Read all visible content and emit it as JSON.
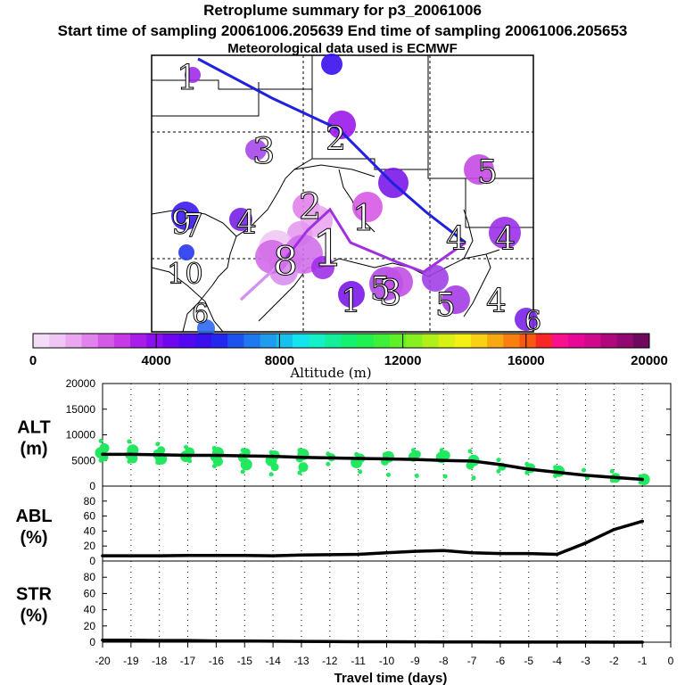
{
  "header": {
    "title": "Retroplume summary for p3_20061006",
    "sampling": "Start time of sampling 20061006.205639     End time of sampling 20061006.205653",
    "met": "Meteorological data used is ECMWF"
  },
  "colorbar": {
    "tick_labels": [
      "0",
      "4000",
      "8000",
      "12000",
      "16000",
      "20000"
    ],
    "label": "Altitude (m)",
    "colors": [
      "#f4dcf7",
      "#f0c6f4",
      "#eaa6f0",
      "#e282ec",
      "#d45ae6",
      "#c53ae6",
      "#a81ee8",
      "#8c10ee",
      "#6e06f0",
      "#5208f0",
      "#3a10ee",
      "#2428ee",
      "#1e52ee",
      "#1e78ee",
      "#1e9cee",
      "#18c0ee",
      "#14e4ee",
      "#14f0c8",
      "#14f09a",
      "#14f070",
      "#20f050",
      "#40f038",
      "#60f028",
      "#88f020",
      "#b0f018",
      "#d8f014",
      "#f4f014",
      "#f8d014",
      "#f8a810",
      "#f88010",
      "#f85810",
      "#f82828",
      "#f8108c",
      "#e80898",
      "#d0088c",
      "#b0087c",
      "#900870",
      "#700860"
    ]
  },
  "map": {
    "day_labels": [
      {
        "t": "1",
        "size": 38
      },
      {
        "t": "6",
        "size": 30
      },
      {
        "t": "5",
        "size": 36
      },
      {
        "t": "2",
        "size": 36
      },
      {
        "t": "3",
        "size": 40
      },
      {
        "t": "9",
        "size": 36
      },
      {
        "t": "4",
        "size": 36
      },
      {
        "t": "4",
        "size": 36
      },
      {
        "t": "2",
        "size": 40
      },
      {
        "t": "1",
        "size": 40
      },
      {
        "t": "7",
        "size": 36
      },
      {
        "t": "10",
        "size": 32
      },
      {
        "t": "1",
        "size": 56
      },
      {
        "t": "8",
        "size": 44
      },
      {
        "t": "5",
        "size": 36
      },
      {
        "t": "3",
        "size": 40
      },
      {
        "t": "1",
        "size": 36
      },
      {
        "t": "5",
        "size": 36
      },
      {
        "t": "4",
        "size": 36
      },
      {
        "t": "6",
        "size": 30
      },
      {
        "t": "4",
        "size": 36
      }
    ],
    "clusters": [
      {
        "color": "#a02ce8",
        "r": 9
      },
      {
        "color": "#3a10ee",
        "r": 12
      },
      {
        "color": "#9a18ea",
        "r": 16
      },
      {
        "color": "#a548e8",
        "r": 12
      },
      {
        "color": "#7a18e8",
        "r": 17
      },
      {
        "color": "#c54ae6",
        "r": 17
      },
      {
        "color": "#3c18ee",
        "r": 16
      },
      {
        "color": "#7520e8",
        "r": 13
      },
      {
        "color": "#2838ee",
        "r": 9
      },
      {
        "color": "#e282ec",
        "r": 15
      },
      {
        "color": "#eaa6f0",
        "r": 18
      },
      {
        "color": "#d85ae6",
        "r": 17
      },
      {
        "color": "#e49aee",
        "r": 14
      },
      {
        "color": "#f0c6f4",
        "r": 20
      },
      {
        "color": "#e6a0ee",
        "r": 18
      },
      {
        "color": "#d070ea",
        "r": 22
      },
      {
        "color": "#d890ee",
        "r": 16
      },
      {
        "color": "#d26ae8",
        "r": 19
      },
      {
        "color": "#a030e8",
        "r": 13
      },
      {
        "color": "#b04ae6",
        "r": 19
      },
      {
        "color": "#c350e6",
        "r": 17
      },
      {
        "color": "#7a18e8",
        "r": 15
      },
      {
        "color": "#a040e6",
        "r": 15
      },
      {
        "color": "#a53ce6",
        "r": 16
      },
      {
        "color": "#9a30e8",
        "r": 18
      },
      {
        "color": "#2c68ee",
        "r": 10
      },
      {
        "color": "#7a22e8",
        "r": 13
      }
    ],
    "track_colors": {
      "blue": "#2020e0",
      "purple": "#a030e0",
      "light": "#d890f0"
    }
  },
  "chart_data": {
    "type": "line",
    "x": [
      -20,
      -19,
      -18,
      -17,
      -16,
      -15,
      -14,
      -13,
      -12,
      -11,
      -10,
      -9,
      -8,
      -7,
      -6,
      -5,
      -4,
      -3,
      -2,
      -1
    ],
    "xlim": [
      -20,
      0
    ],
    "xlabel": "Travel time (days)",
    "x_tick_labels": [
      "-20",
      "-19",
      "-18",
      "-17",
      "-16",
      "-15",
      "-14",
      "-13",
      "-12",
      "-11",
      "-10",
      "-9",
      "-8",
      "-7",
      "-6",
      "-5",
      "-4",
      "-3",
      "-2",
      "-1",
      "0"
    ],
    "panels": [
      {
        "name": "ALT",
        "ylabel_line1": "ALT",
        "ylabel_line2": "(m)",
        "ylim": [
          0,
          20000
        ],
        "y_ticks": [
          "0",
          "5000",
          "10000",
          "15000",
          "20000"
        ],
        "mean": [
          6200,
          6200,
          6100,
          6000,
          6000,
          5900,
          5800,
          5600,
          5500,
          5400,
          5300,
          5200,
          5000,
          4900,
          4200,
          3300,
          2700,
          2100,
          1700,
          1300
        ],
        "dot_color": "#22e860",
        "cluster_altitudes": [
          [
            8800,
            7400,
            6500,
            5600,
            5000
          ],
          [
            8700,
            7000,
            6000,
            5400,
            4800
          ],
          [
            8200,
            7000,
            6200,
            5300,
            4600
          ],
          [
            7600,
            6600,
            5800,
            4900
          ],
          [
            7400,
            6500,
            5600,
            4800,
            3900
          ],
          [
            7000,
            6600,
            5600,
            4200,
            2800
          ],
          [
            6600,
            6000,
            5000,
            3700,
            2300
          ],
          [
            7000,
            6200,
            5400,
            3700,
            2600
          ],
          [
            6300,
            5600,
            4300
          ],
          [
            6200,
            5400,
            4600,
            2800
          ],
          [
            6200,
            5700,
            4800,
            2200
          ],
          [
            7000,
            6200,
            5700,
            2000
          ],
          [
            7000,
            6000,
            5600,
            1900
          ],
          [
            6800,
            5000,
            4000,
            1600
          ],
          [
            5100,
            3800,
            2900
          ],
          [
            4300,
            3500,
            2600
          ],
          [
            3700,
            2900,
            2000
          ],
          [
            3100,
            1600
          ],
          [
            2900,
            1600,
            1100
          ],
          [
            1900,
            1300,
            700
          ]
        ]
      },
      {
        "name": "ABL",
        "ylabel_line1": "ABL",
        "ylabel_line2": "(%)",
        "ylim": [
          0,
          100
        ],
        "y_ticks": [
          "0",
          "20",
          "40",
          "60",
          "80"
        ],
        "values": [
          7,
          7,
          7,
          7.5,
          7.5,
          7.5,
          7,
          8,
          8.5,
          9,
          11,
          13,
          14,
          11,
          10,
          10,
          9,
          24,
          42,
          53
        ]
      },
      {
        "name": "STR",
        "ylabel_line1": "STR",
        "ylabel_line2": "(%)",
        "ylim": [
          0,
          100
        ],
        "y_ticks": [
          "0",
          "20",
          "40",
          "60",
          "80"
        ],
        "values": [
          2.5,
          2.5,
          2,
          2,
          1.5,
          1.5,
          1.2,
          1,
          0.8,
          0.6,
          0.5,
          0.4,
          0.3,
          0.3,
          0.2,
          0.2,
          0.1,
          0.1,
          0,
          0
        ]
      }
    ]
  }
}
